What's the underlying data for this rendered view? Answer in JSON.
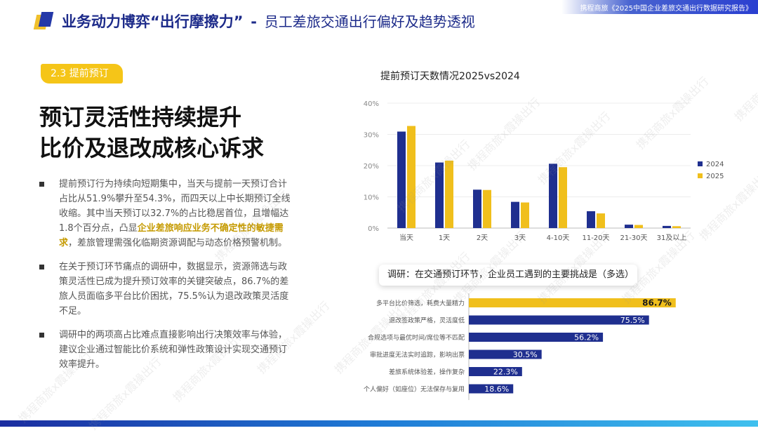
{
  "header": {
    "title_bold": "业务动力博弈“出行摩擦力”",
    "dash": "-",
    "title_sub": "员工差旅交通出行偏好及趋势透视",
    "source": "携程商旅《2025中国企业差旅交通出行数据研究报告》"
  },
  "section_tag": "2.3 提前预订",
  "headline": {
    "line1": "预订灵活性持续提升",
    "line2": "比价及退改成核心诉求"
  },
  "bullets": [
    {
      "pre": "提前预订行为持续向短期集中，当天与提前一天预订合计占比从51.9%攀升至54.3%，而四天以上中长期预订全线收缩。其中当天预订以32.7%的占比稳居首位，且增幅达1.8个百分点，凸显",
      "highlight": "企业差旅响应业务不确定性的敏捷需求",
      "post": "，差旅管理需强化临期资源调配与动态价格预警机制。"
    },
    {
      "text": "在关于预订环节痛点的调研中，数据显示，资源筛选与政策灵活性已成为提升预订效率的关键突破点，86.7%的差旅人员面临多平台比价困扰，75.5%认为退改政策灵活度不足。"
    },
    {
      "text": "调研中的两项高占比难点直接影响出行决策效率与体验，建议企业通过智能比价系统和弹性政策设计实现交通预订效率提升。"
    }
  ],
  "survey_title": "调研：在交通预订环节，企业员工遇到的主要挑战是（多选）",
  "watermark": "携程商旅x霞操出行",
  "colors": {
    "navy": "#1f2f8f",
    "gold": "#f0bf1c",
    "header": "#1d2b8a"
  },
  "chart_data": [
    {
      "type": "bar",
      "title": "提前预订天数情况2025vs2024",
      "categories": [
        "当天",
        "1天",
        "2天",
        "3天",
        "4-10天",
        "11-20天",
        "21-30天",
        "31及以上"
      ],
      "series": [
        {
          "name": "2024",
          "values": [
            30.9,
            21.0,
            12.3,
            8.4,
            20.6,
            5.4,
            1.1,
            0.7
          ]
        },
        {
          "name": "2025",
          "values": [
            32.7,
            21.6,
            12.2,
            8.2,
            19.5,
            4.7,
            1.0,
            0.6
          ]
        }
      ],
      "ylim": [
        0,
        40
      ],
      "yticks": [
        "0%",
        "10%",
        "20%",
        "30%",
        "40%"
      ],
      "legend": "right"
    },
    {
      "type": "bar",
      "orientation": "horizontal",
      "categories": [
        "多平台比价筛选，耗费大量精力",
        "退改签政策严格，灵活度低",
        "合规选项与最优时间/席位等不匹配",
        "审批进度无法实时追踪，影响出票",
        "差旅系统体验差，操作复杂",
        "个人偏好（如座位）无法保存与复用"
      ],
      "values": [
        86.7,
        75.5,
        56.2,
        30.5,
        22.3,
        18.6
      ],
      "labels": [
        "86.7%",
        "75.5%",
        "56.2%",
        "30.5%",
        "22.3%",
        "18.6%"
      ],
      "highlight_index": 0,
      "xlim": [
        0,
        100
      ]
    }
  ]
}
